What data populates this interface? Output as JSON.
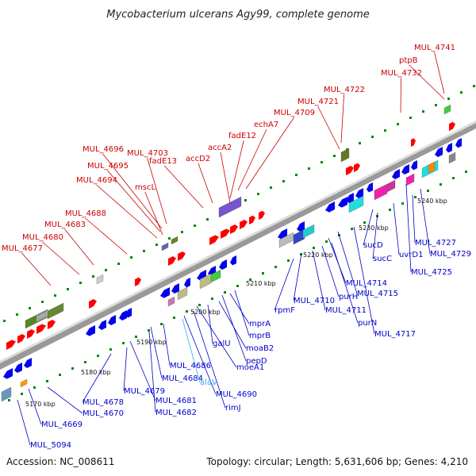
{
  "title": "Mycobacterium ulcerans Agy99, complete genome",
  "footer": {
    "accession": "Accession: NC_008611",
    "summary": "Topology: circular; Length: 5,631,606 bp; Genes: 4,210"
  },
  "colors": {
    "forward_label": "#cc0000",
    "reverse_label": "#0000cc",
    "rna_label": "#33aaee",
    "forward_arrow": "#ff0000",
    "reverse_arrow": "#0000ee",
    "backbone": "#999999",
    "tick": "#008800"
  },
  "ticks": [
    "5170 kbp",
    "5180 kbp",
    "5190 kbp",
    "5200 kbp",
    "5210 kbp",
    "5220 kbp",
    "5230 kbp",
    "5240 kbp"
  ],
  "forward_labels": [
    "MUL_4741",
    "ptpB",
    "MUL_4732",
    "MUL_4722",
    "MUL_4721",
    "MUL_4709",
    "echA7",
    "fadE12",
    "accA2",
    "fadE13",
    "accD2",
    "MUL_4703",
    "MUL_4696",
    "MUL_4695",
    "mscL",
    "MUL_4694",
    "MUL_4688",
    "MUL_4683",
    "MUL_4680",
    "MUL_4677"
  ],
  "reverse_labels": [
    "MUL_5094",
    "MUL_4669",
    "MUL_4670",
    "MUL_4678",
    "MUL_4679",
    "MUL_4681",
    "MUL_4682",
    "MUL_4684",
    "MUL_4686",
    "alaV",
    "MUL_4690",
    "rimJ",
    "moeA1",
    "galU",
    "moaB2",
    "pepD",
    "mprA",
    "mprB",
    "rpmF",
    "MUL_4710",
    "MUL_4711",
    "purH",
    "purN",
    "MUL_4714",
    "MUL_4715",
    "MUL_4717",
    "sucC",
    "sucD",
    "uvrD1",
    "MUL_4727",
    "MUL_4729",
    "MUL_4725"
  ]
}
